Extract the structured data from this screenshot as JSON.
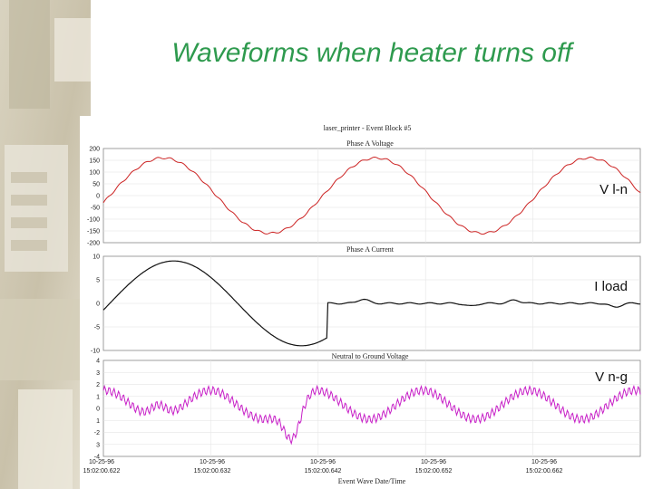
{
  "slide": {
    "title": "Waveforms when heater turns off",
    "accent_color": "#2e9a4e"
  },
  "chart_data": {
    "type": "line",
    "figure_title": "laser_printer - Event Block #5",
    "x_axis_title": "Event Wave Date/Time",
    "x_ticks": [
      {
        "date": "10-25-96",
        "time": "15:02:00.622"
      },
      {
        "date": "10-25-96",
        "time": "15:02:00.632"
      },
      {
        "date": "10-25-96",
        "time": "15:02:00.642"
      },
      {
        "date": "10-25-96",
        "time": "15:02:00.652"
      },
      {
        "date": "10-25-96",
        "time": "15:02:00.662"
      }
    ],
    "panels": [
      {
        "title": "Phase A Voltage",
        "label": "V l-n",
        "color": "#cc2222",
        "ylim": [
          -200,
          200
        ],
        "yticks": [
          "200",
          "150",
          "100",
          "50",
          "0",
          "-50",
          "-100",
          "-150",
          "-200"
        ],
        "description_points": {
          "t_ms": [
            0.0,
            2.0,
            4.5,
            7.0,
            9.5,
            12.0,
            14.5,
            17.0,
            19.5,
            22.0,
            24.5,
            27.0,
            29.5,
            32.0,
            34.5,
            37.0,
            39.5,
            42.0
          ],
          "values": [
            0,
            120,
            160,
            90,
            -50,
            -150,
            -155,
            -90,
            60,
            160,
            150,
            40,
            -110,
            -160,
            -120,
            10,
            150,
            160
          ]
        }
      },
      {
        "title": "Phase A Current",
        "label": "I load",
        "color": "#111111",
        "ylim": [
          -10,
          10
        ],
        "yticks": [
          "10",
          "5",
          "0",
          "-5",
          "-10"
        ],
        "description_points": {
          "t_ms": [
            0.0,
            3.0,
            6.0,
            8.5,
            11.0,
            13.0,
            14.6,
            16.0,
            18.0,
            22.0,
            27.0,
            31.0,
            37.0,
            42.0
          ],
          "values": [
            0,
            6,
            9,
            4,
            -5,
            -9,
            -9.5,
            -7,
            0,
            1,
            -0.5,
            1,
            -1,
            0
          ]
        }
      },
      {
        "title": "Neutral to Ground Voltage",
        "label": "V n-g",
        "color": "#c71fc7",
        "ylim": [
          -4,
          4
        ],
        "yticks": [
          "4",
          "3",
          "2",
          "1",
          "0",
          "1",
          "-2",
          "3",
          "-4"
        ],
        "description_points": {
          "t_ms": [
            0.0,
            2.5,
            5.0,
            7.5,
            10.0,
            12.5,
            15.0,
            17.5,
            20.0,
            22.5,
            25.0,
            27.5,
            30.0,
            32.5,
            35.0,
            37.5,
            40.0,
            42.0
          ],
          "values": [
            0.5,
            1.5,
            2.5,
            1.5,
            0,
            -0.5,
            -3,
            -1,
            0.5,
            1.8,
            0.3,
            -0.5,
            -1.3,
            0.3,
            1.0,
            -0.6,
            -1.2,
            0.3
          ]
        }
      }
    ]
  }
}
